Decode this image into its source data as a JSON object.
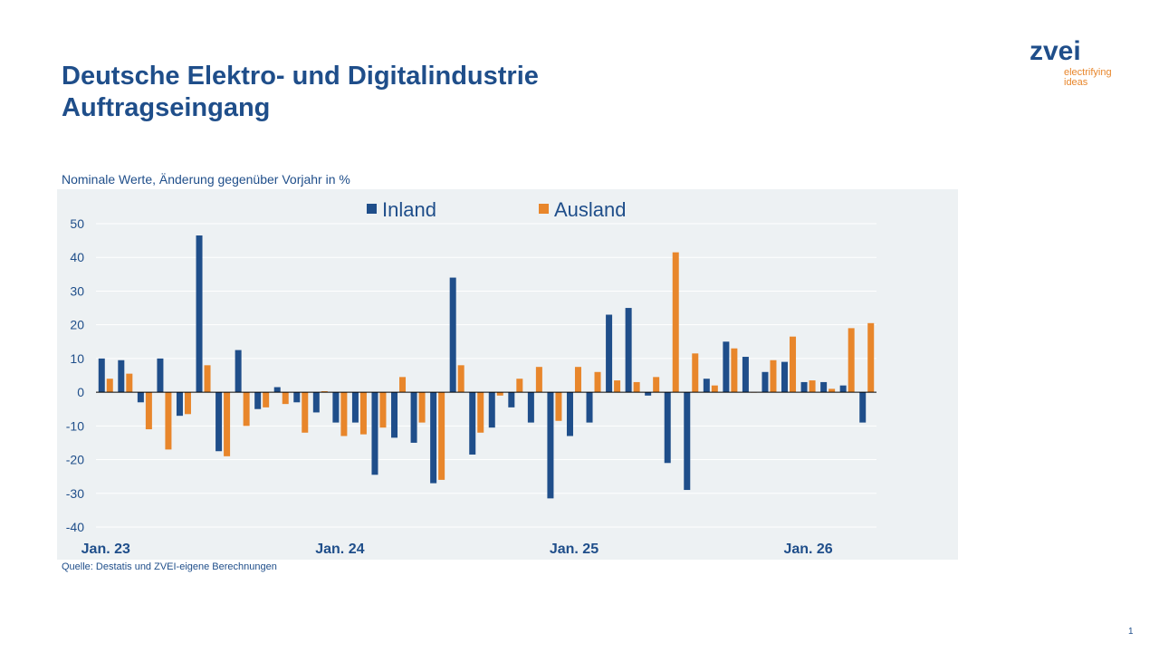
{
  "header": {
    "title": "Deutsche Elektro- und Digitalindustrie",
    "subtitle": "Auftragseingang"
  },
  "logo": {
    "wordmark": "zvei",
    "tagline_line1": "electrifying",
    "tagline_line2": "ideas"
  },
  "chart_caption": "Nominale Werte, Änderung gegenüber Vorjahr in %",
  "source_note": "Quelle: Destatis und ZVEI-eigene Berechnungen",
  "page_number": "1",
  "colors": {
    "inland": "#1f4e8a",
    "ausland": "#e8862b",
    "plot_background": "#edf1f3",
    "text": "#1f4e8a"
  },
  "chart_data": {
    "type": "bar",
    "categories": [
      "2023-01",
      "2023-02",
      "2023-03",
      "2023-04",
      "2023-05",
      "2023-06",
      "2023-07",
      "2023-08",
      "2023-09",
      "2023-10",
      "2023-11",
      "2023-12",
      "2024-01",
      "2024-02",
      "2024-03",
      "2024-04",
      "2024-05",
      "2024-06",
      "2024-07",
      "2024-08",
      "2024-09",
      "2024-10",
      "2024-11",
      "2024-12",
      "2025-01",
      "2025-02",
      "2025-03",
      "2025-04",
      "2025-05",
      "2025-06",
      "2025-07",
      "2025-08",
      "2025-09",
      "2025-10",
      "2025-11",
      "2025-12",
      "2026-01",
      "2026-02",
      "2026-03",
      "2026-04"
    ],
    "x_tick_labels": [
      {
        "category": "2023-01",
        "label": "Jan. 23"
      },
      {
        "category": "2024-01",
        "label": "Jan. 24"
      },
      {
        "category": "2025-01",
        "label": "Jan. 25"
      },
      {
        "category": "2026-01",
        "label": "Jan. 26"
      }
    ],
    "series": [
      {
        "name": "Inland",
        "values": [
          10,
          9.5,
          -3,
          10,
          -7,
          46.5,
          -17.5,
          12.5,
          -5,
          1.5,
          -3,
          -6,
          -9,
          -9,
          -24.5,
          -13.5,
          -15,
          -27,
          34,
          -18.5,
          -10.5,
          -4.5,
          -9,
          -31.5,
          -13,
          -9,
          23,
          25,
          -1,
          -21,
          -29,
          4,
          15,
          10.5,
          6,
          9,
          3,
          3,
          2,
          -9
        ]
      },
      {
        "name": "Ausland",
        "values": [
          4,
          5.5,
          -11,
          -17,
          -6.5,
          8,
          -19,
          -10,
          -4.5,
          -3.5,
          -12,
          0.3,
          -13,
          -12.5,
          -10.5,
          4.5,
          -9,
          -26,
          8,
          -12,
          -1,
          4,
          7.5,
          -8.5,
          7.5,
          6,
          3.5,
          3,
          4.5,
          41.5,
          11.5,
          2,
          13,
          0,
          9.5,
          16.5,
          3.5,
          1,
          19,
          20.5
        ]
      }
    ],
    "ylim": [
      -40,
      50
    ],
    "yticks": [
      -40,
      -30,
      -20,
      -10,
      0,
      10,
      20,
      30,
      40,
      50
    ],
    "title": "",
    "xlabel": "",
    "ylabel": "",
    "grid": "horizontal",
    "legend": "top-center"
  }
}
